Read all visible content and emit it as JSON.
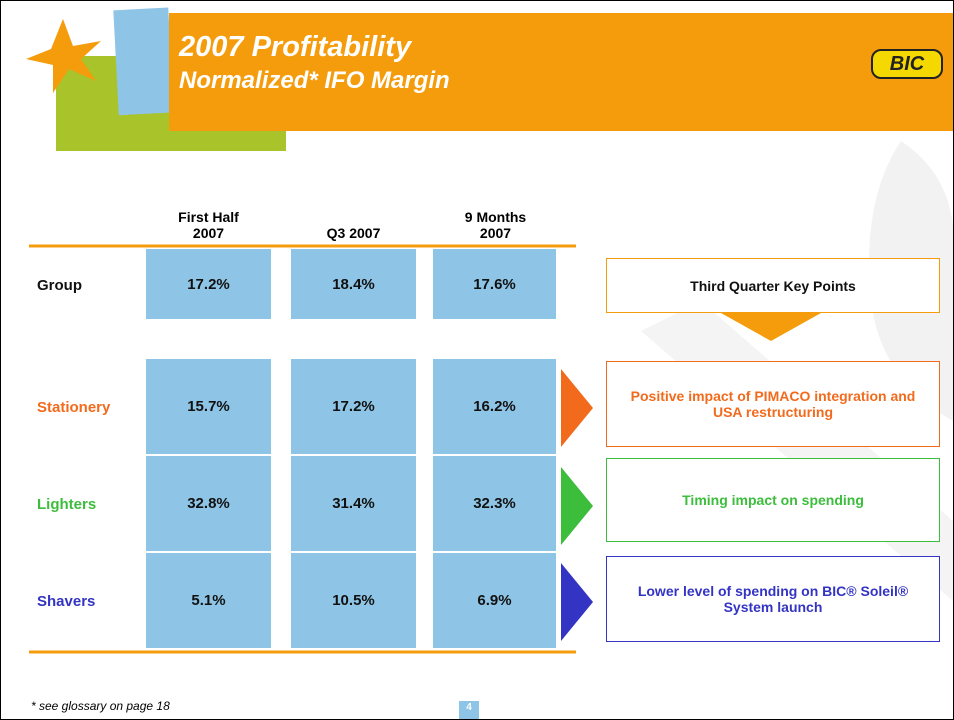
{
  "header": {
    "title": "2007 Profitability",
    "subtitle": "Normalized* IFO Margin",
    "logo": "BIC"
  },
  "table": {
    "columns": [
      "First Half\n2007",
      "Q3 2007",
      "9 Months\n2007"
    ],
    "rows": [
      {
        "label": "Group",
        "values": [
          "17.2%",
          "18.4%",
          "17.6%"
        ]
      },
      {
        "label": "Stationery",
        "values": [
          "15.7%",
          "17.2%",
          "16.2%"
        ]
      },
      {
        "label": "Lighters",
        "values": [
          "32.8%",
          "31.4%",
          "32.3%"
        ]
      },
      {
        "label": "Shavers",
        "values": [
          "5.1%",
          "10.5%",
          "6.9%"
        ]
      }
    ]
  },
  "key_points": {
    "title": "Third Quarter Key Points",
    "items": [
      "Positive impact of PIMACO integration and USA restructuring",
      "Timing impact on spending",
      "Lower level of spending on BIC® Soleil® System launch"
    ]
  },
  "footnote": "* see glossary on page 18",
  "page_number": "4"
}
